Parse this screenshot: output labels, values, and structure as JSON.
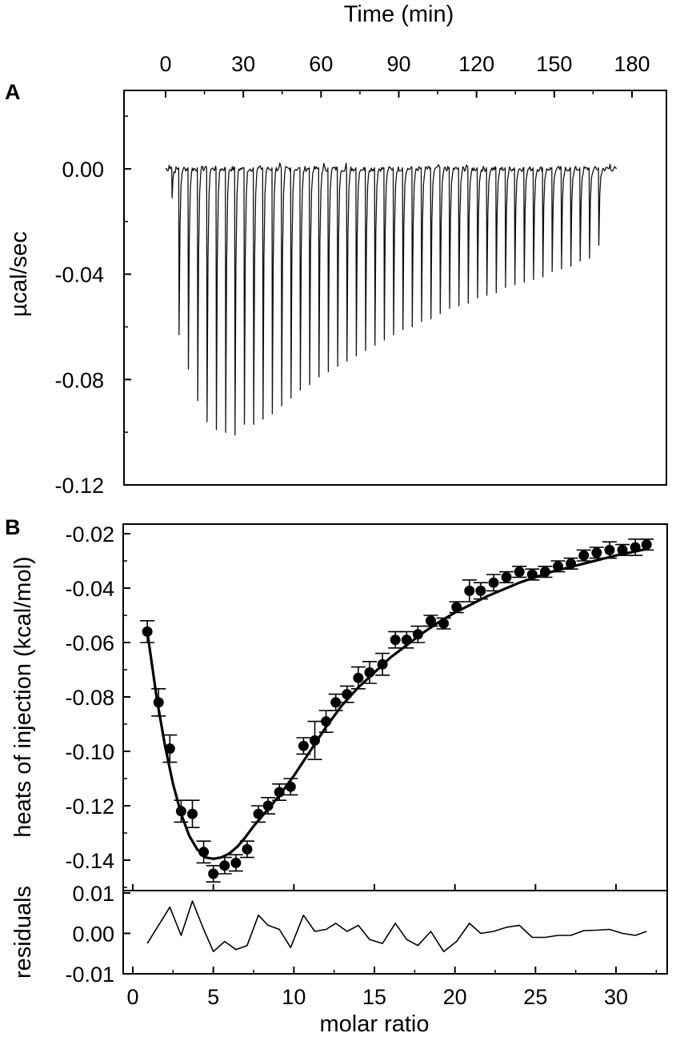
{
  "chart_data": [
    {
      "panel": "A",
      "type": "line",
      "title": "",
      "xlabel": "Time (min)",
      "ylabel": "µcal/sec",
      "xlim": [
        -3,
        190
      ],
      "ylim": [
        -0.12,
        0.03
      ],
      "x_ticks": [
        "0",
        "30",
        "60",
        "90",
        "120",
        "150",
        "180"
      ],
      "y_ticks": [
        "0.00",
        "-0.04",
        "-0.08",
        "-0.12"
      ],
      "x_axis_position": "top",
      "grid": false,
      "injection_times_min": [
        2.5,
        5.2,
        8.8,
        12.4,
        16.0,
        19.6,
        23.2,
        26.8,
        30.4,
        34.0,
        37.6,
        41.2,
        44.8,
        48.4,
        52.0,
        55.6,
        59.2,
        62.8,
        66.4,
        70.0,
        73.6,
        77.2,
        80.8,
        84.4,
        88.0,
        91.6,
        95.2,
        98.8,
        102.4,
        106.0,
        109.6,
        113.2,
        116.8,
        120.4,
        124.0,
        127.6,
        131.2,
        134.8,
        138.4,
        142.0,
        145.6,
        149.2,
        152.8,
        156.4,
        160.0,
        163.6,
        167.2
      ],
      "peak_minima_ucal_per_sec": [
        -0.011,
        -0.063,
        -0.076,
        -0.088,
        -0.096,
        -0.099,
        -0.1,
        -0.101,
        -0.097,
        -0.097,
        -0.095,
        -0.093,
        -0.09,
        -0.087,
        -0.084,
        -0.082,
        -0.079,
        -0.077,
        -0.075,
        -0.073,
        -0.071,
        -0.069,
        -0.067,
        -0.065,
        -0.063,
        -0.061,
        -0.06,
        -0.058,
        -0.057,
        -0.055,
        -0.053,
        -0.052,
        -0.051,
        -0.049,
        -0.048,
        -0.047,
        -0.045,
        -0.044,
        -0.043,
        -0.042,
        -0.041,
        -0.039,
        -0.038,
        -0.037,
        -0.035,
        -0.034,
        -0.029
      ],
      "trace_end_min": 174
    },
    {
      "panel": "B",
      "type": "scatter",
      "title": "",
      "xlabel": "",
      "ylabel": "heats of injection (kcal/mol)",
      "xlim": [
        -1,
        33.5
      ],
      "ylim": [
        -0.151,
        -0.0185
      ],
      "y_ticks": [
        "-0.02",
        "-0.04",
        "-0.06",
        "-0.08",
        "-0.10",
        "-0.12",
        "-0.14"
      ],
      "grid": false,
      "series": [
        {
          "kind": "points-with-error-bars",
          "x": [
            0.9,
            1.6,
            2.3,
            3.0,
            3.7,
            4.4,
            5.0,
            5.7,
            6.4,
            7.1,
            7.8,
            8.4,
            9.1,
            9.8,
            10.6,
            11.3,
            12.0,
            12.6,
            13.3,
            14.0,
            14.7,
            15.5,
            16.3,
            17.0,
            17.7,
            18.5,
            19.3,
            20.1,
            20.9,
            21.6,
            22.4,
            23.2,
            24.0,
            24.8,
            25.6,
            26.4,
            27.2,
            28.0,
            28.8,
            29.6,
            30.4,
            31.2,
            31.9
          ],
          "y": [
            -0.056,
            -0.082,
            -0.099,
            -0.122,
            -0.123,
            -0.137,
            -0.145,
            -0.142,
            -0.141,
            -0.136,
            -0.123,
            -0.12,
            -0.115,
            -0.113,
            -0.098,
            -0.096,
            -0.089,
            -0.082,
            -0.079,
            -0.073,
            -0.071,
            -0.068,
            -0.059,
            -0.059,
            -0.057,
            -0.052,
            -0.053,
            -0.047,
            -0.041,
            -0.041,
            -0.038,
            -0.036,
            -0.034,
            -0.035,
            -0.034,
            -0.032,
            -0.031,
            -0.028,
            -0.027,
            -0.026,
            -0.026,
            -0.025,
            -0.024
          ],
          "error": [
            0.004,
            0.005,
            0.005,
            0.004,
            0.005,
            0.004,
            0.003,
            0.003,
            0.003,
            0.003,
            0.003,
            0.003,
            0.003,
            0.003,
            0.003,
            0.007,
            0.004,
            0.003,
            0.003,
            0.004,
            0.004,
            0.004,
            0.003,
            0.003,
            0.003,
            0.002,
            0.002,
            0.002,
            0.004,
            0.003,
            0.003,
            0.002,
            0.002,
            0.002,
            0.002,
            0.002,
            0.002,
            0.002,
            0.002,
            0.003,
            0.002,
            0.003,
            0.002
          ]
        },
        {
          "kind": "fit-curve",
          "x": [
            0.9,
            1.5,
            2.0,
            2.5,
            3.0,
            3.5,
            4.0,
            4.5,
            5.0,
            5.5,
            6.0,
            6.5,
            7.0,
            7.5,
            8.0,
            9.0,
            10.0,
            11.0,
            12.0,
            13.0,
            14.0,
            15.0,
            16.0,
            17.0,
            18.0,
            19.0,
            20.0,
            21.0,
            22.0,
            23.0,
            24.0,
            25.0,
            26.0,
            27.0,
            28.0,
            29.0,
            30.0,
            31.0,
            32.0
          ],
          "y": [
            -0.056,
            -0.081,
            -0.098,
            -0.112,
            -0.123,
            -0.131,
            -0.136,
            -0.139,
            -0.1395,
            -0.139,
            -0.1375,
            -0.135,
            -0.1315,
            -0.1275,
            -0.124,
            -0.117,
            -0.109,
            -0.1,
            -0.091,
            -0.083,
            -0.0765,
            -0.071,
            -0.0655,
            -0.061,
            -0.0565,
            -0.0525,
            -0.049,
            -0.046,
            -0.043,
            -0.0405,
            -0.038,
            -0.036,
            -0.034,
            -0.0325,
            -0.031,
            -0.0295,
            -0.028,
            -0.0268,
            -0.0255
          ]
        }
      ]
    },
    {
      "panel": "residuals",
      "type": "line",
      "title": "",
      "xlabel": "molar ratio",
      "ylabel": "residuals",
      "xlim": [
        -1,
        33.5
      ],
      "ylim": [
        -0.01,
        0.01
      ],
      "x_ticks": [
        "0",
        "5",
        "10",
        "15",
        "20",
        "25",
        "30"
      ],
      "y_ticks": [
        "0.01",
        "0.00",
        "-0.01"
      ],
      "grid": false,
      "series": [
        {
          "x": [
            0.9,
            1.6,
            2.3,
            3.0,
            3.7,
            4.4,
            5.0,
            5.7,
            6.4,
            7.1,
            7.8,
            8.4,
            9.1,
            9.8,
            10.6,
            11.3,
            12.0,
            12.6,
            13.3,
            14.0,
            14.7,
            15.5,
            16.3,
            17.0,
            17.7,
            18.5,
            19.3,
            20.1,
            20.9,
            21.6,
            22.4,
            23.2,
            24.0,
            24.8,
            25.6,
            26.4,
            27.2,
            28.0,
            28.8,
            29.6,
            30.4,
            31.2,
            31.9
          ],
          "y": [
            -0.0025,
            0.002,
            0.0065,
            -0.0005,
            0.008,
            0.001,
            -0.0045,
            -0.002,
            -0.004,
            -0.003,
            0.0045,
            0.002,
            0.001,
            -0.0035,
            0.0045,
            0.0005,
            0.001,
            0.0025,
            0.0005,
            0.002,
            -0.0015,
            -0.0025,
            0.0025,
            -0.0015,
            -0.003,
            0.0005,
            -0.0045,
            -0.002,
            0.0025,
            0.0,
            0.0005,
            0.0015,
            0.002,
            -0.001,
            -0.001,
            -0.0005,
            -0.0005,
            0.0007,
            0.0008,
            0.001,
            0.0,
            -0.0005,
            0.0005
          ]
        }
      ]
    }
  ],
  "panel_labels": [
    "A",
    "B"
  ]
}
